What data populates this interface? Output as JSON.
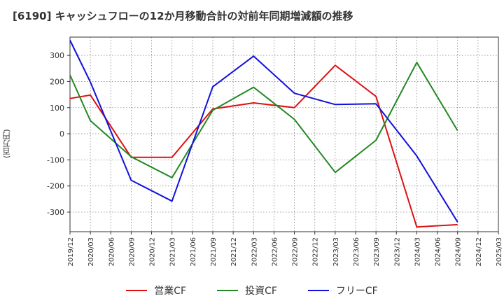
{
  "chart_data": {
    "type": "line",
    "title": "[6190]  キャッシュフローの12か月移動合計の対前年同期増減額の推移",
    "ylabel": "(百万円)",
    "xlabel": "",
    "ylim": [
      -375,
      370
    ],
    "yticks": [
      300,
      200,
      100,
      0,
      -100,
      -200,
      -300
    ],
    "ytick_labels": [
      "300",
      "200",
      "100",
      "0",
      "-100",
      "-200",
      "-300"
    ],
    "x_categories": [
      "2019/12",
      "2020/03",
      "2020/06",
      "2020/09",
      "2020/12",
      "2021/03",
      "2021/06",
      "2021/09",
      "2021/12",
      "2022/03",
      "2022/06",
      "2022/09",
      "2022/12",
      "2023/03",
      "2023/06",
      "2023/09",
      "2023/12",
      "2024/03",
      "2024/06",
      "2024/09",
      "2024/12",
      "2025/03"
    ],
    "grid": true,
    "legend_position": "bottom",
    "series": [
      {
        "name": "営業CF",
        "color": "#dd1111",
        "values": [
          135,
          148,
          null,
          -90,
          null,
          -90,
          null,
          95,
          null,
          118,
          null,
          100,
          null,
          262,
          null,
          143,
          null,
          -357,
          null,
          -348,
          null,
          null
        ]
      },
      {
        "name": "投資CF",
        "color": "#228822",
        "values": [
          225,
          50,
          null,
          -88,
          null,
          -168,
          null,
          90,
          null,
          178,
          null,
          55,
          null,
          -148,
          null,
          -25,
          null,
          273,
          null,
          12,
          null,
          null
        ]
      },
      {
        "name": "フリーCF",
        "color": "#1111dd",
        "values": [
          358,
          198,
          null,
          -178,
          null,
          -258,
          null,
          180,
          null,
          297,
          null,
          155,
          null,
          112,
          null,
          115,
          null,
          -85,
          null,
          -338,
          null,
          null
        ]
      }
    ]
  }
}
